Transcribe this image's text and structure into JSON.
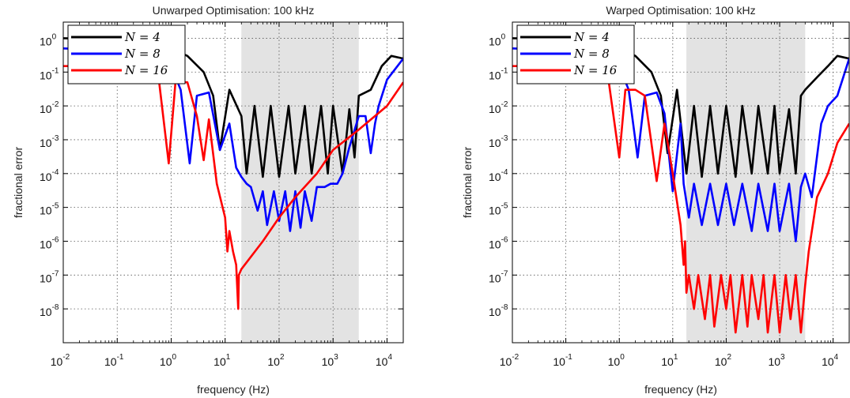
{
  "chart_data": [
    {
      "type": "line",
      "title": "Unwarped Optimisation: 100 kHz",
      "xlabel": "frequency (Hz)",
      "ylabel": "fractional error",
      "xscale": "log",
      "yscale": "log",
      "xlim": [
        0.01,
        20000
      ],
      "ylim": [
        1e-09,
        3
      ],
      "xticks": [
        {
          "base": "10",
          "exp": "-2"
        },
        {
          "base": "10",
          "exp": "-1"
        },
        {
          "base": "10",
          "exp": "0"
        },
        {
          "base": "10",
          "exp": "1"
        },
        {
          "base": "10",
          "exp": "2"
        },
        {
          "base": "10",
          "exp": "3"
        },
        {
          "base": "10",
          "exp": "4"
        }
      ],
      "yticks": [
        {
          "base": "10",
          "exp": "0"
        },
        {
          "base": "10",
          "exp": "-1"
        },
        {
          "base": "10",
          "exp": "-2"
        },
        {
          "base": "10",
          "exp": "-3"
        },
        {
          "base": "10",
          "exp": "-4"
        },
        {
          "base": "10",
          "exp": "-5"
        },
        {
          "base": "10",
          "exp": "-6"
        },
        {
          "base": "10",
          "exp": "-7"
        },
        {
          "base": "10",
          "exp": "-8"
        }
      ],
      "shaded_band_x": [
        20,
        3000
      ],
      "grid": true,
      "legend": "top-left",
      "series": [
        {
          "name": "N = 4",
          "color": "#000000",
          "x": [
            0.01,
            0.3,
            1,
            2,
            4,
            6,
            8,
            12,
            20,
            25,
            35,
            50,
            70,
            100,
            150,
            200,
            300,
            400,
            600,
            800,
            1000,
            1500,
            2000,
            2500,
            3000,
            5000,
            8000,
            12000,
            20000
          ],
          "y": [
            1,
            0.9,
            0.5,
            0.3,
            0.1,
            0.02,
            0.0005,
            0.03,
            0.005,
            0.0001,
            0.01,
            8e-05,
            0.01,
            8e-05,
            0.01,
            0.0001,
            0.01,
            0.0001,
            0.01,
            0.0001,
            0.01,
            0.0001,
            0.008,
            0.0003,
            0.02,
            0.03,
            0.15,
            0.3,
            0.25
          ]
        },
        {
          "name": "N = 8",
          "color": "#0000ff",
          "x": [
            0.01,
            0.5,
            1,
            1.5,
            2.2,
            3,
            5,
            8,
            12,
            16,
            20,
            25,
            30,
            40,
            50,
            60,
            80,
            100,
            130,
            160,
            200,
            250,
            300,
            400,
            500,
            700,
            900,
            1200,
            1500,
            2000,
            3000,
            4000,
            5000,
            6000,
            7000,
            10000,
            20000
          ],
          "y": [
            0.5,
            0.4,
            0.15,
            0.03,
            0.0002,
            0.02,
            0.025,
            0.0005,
            0.003,
            0.00015,
            8e-05,
            5e-05,
            4e-05,
            8e-06,
            3e-05,
            3e-06,
            3e-05,
            4e-06,
            3e-05,
            2e-06,
            3e-05,
            2.5e-06,
            3e-05,
            4e-06,
            4e-05,
            4e-05,
            5e-05,
            5e-05,
            0.0001,
            0.0006,
            0.005,
            0.005,
            0.0004,
            0.003,
            0.01,
            0.06,
            0.25
          ]
        },
        {
          "name": "N = 16",
          "color": "#ff0000",
          "x": [
            0.01,
            0.3,
            0.6,
            0.9,
            1.2,
            2,
            3,
            4,
            5,
            7,
            10,
            11,
            12,
            14,
            16,
            17.5,
            18,
            20,
            50,
            100,
            200,
            500,
            1000,
            3000,
            10000,
            20000
          ],
          "y": [
            0.15,
            0.15,
            0.05,
            0.0002,
            0.05,
            0.05,
            0.005,
            0.00025,
            0.004,
            5e-05,
            5e-06,
            5e-07,
            2e-06,
            5e-07,
            2e-07,
            1e-08,
            1e-07,
            1.5e-07,
            1e-06,
            5e-06,
            2e-05,
            0.0001,
            0.0005,
            0.002,
            0.01,
            0.05
          ]
        }
      ]
    },
    {
      "type": "line",
      "title": "Warped Optimisation: 100 kHz",
      "xlabel": "frequency (Hz)",
      "ylabel": "fractional error",
      "xscale": "log",
      "yscale": "log",
      "xlim": [
        0.01,
        20000
      ],
      "ylim": [
        1e-09,
        3
      ],
      "xticks": [
        {
          "base": "10",
          "exp": "-2"
        },
        {
          "base": "10",
          "exp": "-1"
        },
        {
          "base": "10",
          "exp": "0"
        },
        {
          "base": "10",
          "exp": "1"
        },
        {
          "base": "10",
          "exp": "2"
        },
        {
          "base": "10",
          "exp": "3"
        },
        {
          "base": "10",
          "exp": "4"
        }
      ],
      "yticks": [
        {
          "base": "10",
          "exp": "0"
        },
        {
          "base": "10",
          "exp": "-1"
        },
        {
          "base": "10",
          "exp": "-2"
        },
        {
          "base": "10",
          "exp": "-3"
        },
        {
          "base": "10",
          "exp": "-4"
        },
        {
          "base": "10",
          "exp": "-5"
        },
        {
          "base": "10",
          "exp": "-6"
        },
        {
          "base": "10",
          "exp": "-7"
        },
        {
          "base": "10",
          "exp": "-8"
        }
      ],
      "shaded_band_x": [
        18,
        3000
      ],
      "grid": true,
      "legend": "top-left",
      "series": [
        {
          "name": "N = 4",
          "color": "#000000",
          "x": [
            0.01,
            0.3,
            1,
            2,
            4,
            6,
            8,
            12,
            18,
            25,
            35,
            50,
            70,
            100,
            150,
            200,
            300,
            400,
            600,
            800,
            1000,
            1500,
            2000,
            2500,
            3000,
            5000,
            8000,
            12000,
            20000
          ],
          "y": [
            1,
            0.9,
            0.5,
            0.3,
            0.1,
            0.02,
            0.0004,
            0.03,
            0.0001,
            0.01,
            8e-05,
            0.01,
            0.0001,
            0.01,
            8e-05,
            0.01,
            0.0001,
            0.01,
            0.0001,
            0.01,
            0.0001,
            0.008,
            0.0001,
            0.02,
            0.03,
            0.07,
            0.15,
            0.3,
            0.25
          ]
        },
        {
          "name": "N = 8",
          "color": "#0000ff",
          "x": [
            0.01,
            0.5,
            1,
            1.5,
            2.2,
            3,
            5,
            7,
            10,
            14,
            16,
            20,
            25,
            35,
            50,
            70,
            100,
            140,
            200,
            300,
            400,
            600,
            800,
            1000,
            1500,
            2000,
            2500,
            3000,
            4000,
            6000,
            8000,
            12000,
            20000
          ],
          "y": [
            0.5,
            0.4,
            0.15,
            0.03,
            0.0003,
            0.02,
            0.025,
            0.006,
            3e-05,
            0.003,
            5e-05,
            5e-06,
            5e-05,
            3e-06,
            5e-05,
            3e-06,
            5e-05,
            3e-06,
            5e-05,
            2e-06,
            5e-05,
            2e-06,
            5e-05,
            2e-06,
            5e-05,
            1e-06,
            4e-05,
            0.0001,
            2e-05,
            0.003,
            0.01,
            0.02,
            0.25
          ]
        },
        {
          "name": "N = 16",
          "color": "#ff0000",
          "x": [
            0.01,
            0.3,
            0.6,
            1,
            1.3,
            2,
            3,
            5,
            7,
            10,
            14,
            16,
            17,
            18,
            20,
            25,
            30,
            40,
            50,
            60,
            80,
            100,
            120,
            150,
            200,
            250,
            300,
            400,
            500,
            600,
            800,
            1000,
            1300,
            1600,
            2000,
            2500,
            3000,
            3500,
            5000,
            8000,
            12000,
            20000
          ],
          "y": [
            0.15,
            0.15,
            0.1,
            0.0003,
            0.03,
            0.03,
            0.02,
            6e-05,
            0.003,
            0.0001,
            3e-06,
            2e-07,
            1e-06,
            3e-08,
            1e-07,
            1e-08,
            1e-07,
            5e-09,
            1e-07,
            3e-09,
            1e-07,
            1e-08,
            1e-07,
            2e-09,
            1e-07,
            3e-09,
            1e-07,
            5e-09,
            1e-07,
            2e-09,
            1e-07,
            2e-09,
            1e-07,
            5e-09,
            1e-07,
            2e-09,
            5e-08,
            5e-07,
            2e-05,
            0.0001,
            0.0008,
            0.003
          ]
        }
      ]
    }
  ]
}
